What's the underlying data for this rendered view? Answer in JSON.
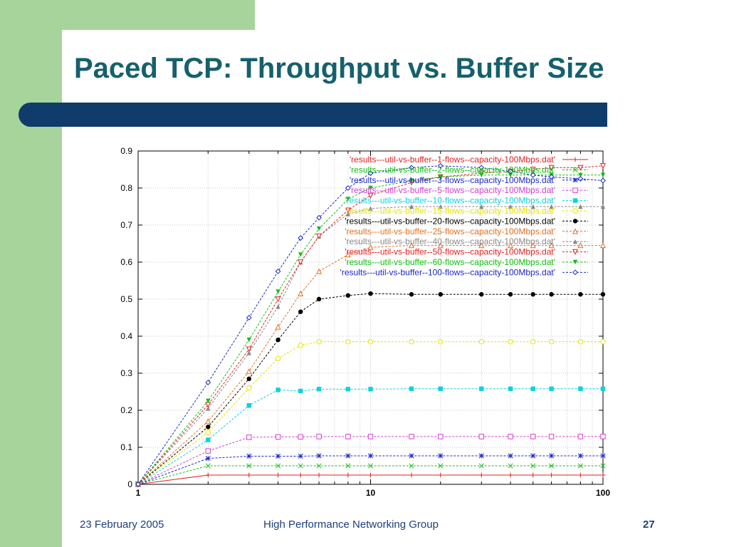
{
  "slide": {
    "title": "Paced TCP: Throughput vs. Buffer Size",
    "footer_date": "23 February 2005",
    "footer_group": "High Performance Networking Group",
    "page_number": "27"
  },
  "chart_data": {
    "type": "line",
    "title": "",
    "xlabel": "",
    "ylabel": "",
    "x_scale": "log",
    "xlim": [
      1,
      100
    ],
    "ylim": [
      0,
      0.9
    ],
    "x_ticks": [
      1,
      10,
      100
    ],
    "x_tick_labels": [
      "1",
      "10",
      "100"
    ],
    "y_ticks": [
      0,
      0.1,
      0.2,
      0.3,
      0.4,
      0.5,
      0.6,
      0.7,
      0.8,
      0.9
    ],
    "y_tick_labels": [
      "0",
      "0.1",
      "0.2",
      "0.3",
      "0.4",
      "0.5",
      "0.6",
      "0.7",
      "0.8",
      "0.9"
    ],
    "grid": true,
    "legend_position": "top-right",
    "x": [
      1,
      2,
      3,
      4,
      5,
      6,
      8,
      10,
      15,
      20,
      30,
      40,
      50,
      60,
      80,
      100
    ],
    "series": [
      {
        "name": "'results---util-vs-buffer--1-flows--capacity-100Mbps.dat'",
        "color": "#e02020",
        "marker": "plus",
        "values": [
          0,
          0.025,
          0.025,
          0.025,
          0.025,
          0.025,
          0.025,
          0.025,
          0.025,
          0.025,
          0.025,
          0.025,
          0.025,
          0.025,
          0.025,
          0.025
        ]
      },
      {
        "name": "'results---util-vs-buffer--2-flows--capacity-100Mbps.dat'",
        "color": "#10c010",
        "marker": "x",
        "values": [
          0,
          0.05,
          0.05,
          0.05,
          0.05,
          0.05,
          0.05,
          0.05,
          0.05,
          0.05,
          0.05,
          0.05,
          0.05,
          0.05,
          0.05,
          0.05
        ]
      },
      {
        "name": "'results---util-vs-buffer--3-flows--capacity-100Mbps.dat'",
        "color": "#1a28c8",
        "marker": "star",
        "values": [
          0,
          0.07,
          0.076,
          0.076,
          0.076,
          0.077,
          0.077,
          0.077,
          0.077,
          0.077,
          0.077,
          0.077,
          0.077,
          0.077,
          0.077,
          0.077
        ]
      },
      {
        "name": "'results---util-vs-buffer--5-flows--capacity-100Mbps.dat'",
        "color": "#d040d0",
        "marker": "square",
        "values": [
          0,
          0.09,
          0.127,
          0.128,
          0.128,
          0.129,
          0.129,
          0.129,
          0.129,
          0.129,
          0.129,
          0.129,
          0.129,
          0.129,
          0.129,
          0.129
        ]
      },
      {
        "name": "'results---util-vs-buffer--10-flows--capacity-100Mbps.dat'",
        "color": "#10d0e0",
        "marker": "filled-square",
        "values": [
          0,
          0.12,
          0.213,
          0.255,
          0.252,
          0.257,
          0.257,
          0.257,
          0.258,
          0.258,
          0.258,
          0.258,
          0.258,
          0.258,
          0.258,
          0.258
        ]
      },
      {
        "name": "'results---util-vs-buffer--15-flows--capacity-100Mbps.dat'",
        "color": "#e8e000",
        "marker": "circle",
        "values": [
          0,
          0.14,
          0.26,
          0.34,
          0.375,
          0.385,
          0.385,
          0.385,
          0.385,
          0.385,
          0.385,
          0.385,
          0.385,
          0.385,
          0.385,
          0.385
        ]
      },
      {
        "name": "'results---util-vs-buffer--20-flows--capacity-100Mbps.dat'",
        "color": "#000000",
        "marker": "filled-circle",
        "values": [
          0,
          0.155,
          0.285,
          0.39,
          0.466,
          0.5,
          0.51,
          0.515,
          0.513,
          0.513,
          0.513,
          0.513,
          0.513,
          0.513,
          0.513,
          0.513
        ]
      },
      {
        "name": "'results---util-vs-buffer--25-flows--capacity-100Mbps.dat'",
        "color": "#e07020",
        "marker": "triangle",
        "values": [
          0,
          0.17,
          0.305,
          0.425,
          0.515,
          0.575,
          0.62,
          0.64,
          0.645,
          0.645,
          0.645,
          0.645,
          0.645,
          0.645,
          0.645,
          0.645
        ]
      },
      {
        "name": "'results---util-vs-buffer--40-flows--capacity-100Mbps.dat'",
        "color": "#888888",
        "marker": "filled-triangle",
        "values": [
          0,
          0.205,
          0.355,
          0.48,
          0.6,
          0.67,
          0.73,
          0.745,
          0.75,
          0.75,
          0.75,
          0.75,
          0.75,
          0.75,
          0.75,
          0.75
        ]
      },
      {
        "name": "'results---util-vs-buffer--50-flows--capacity-100Mbps.dat'",
        "color": "#e02020",
        "marker": "triangle-down",
        "values": [
          0,
          0.215,
          0.365,
          0.5,
          0.6,
          0.67,
          0.74,
          0.78,
          0.815,
          0.83,
          0.84,
          0.845,
          0.85,
          0.855,
          0.855,
          0.86
        ]
      },
      {
        "name": "'results---util-vs-buffer--60-flows--capacity-100Mbps.dat'",
        "color": "#10c010",
        "marker": "filled-triangle-down",
        "values": [
          0,
          0.225,
          0.39,
          0.52,
          0.62,
          0.69,
          0.77,
          0.8,
          0.82,
          0.83,
          0.835,
          0.835,
          0.835,
          0.835,
          0.835,
          0.835
        ]
      },
      {
        "name": "'results---util-vs-buffer--100-flows--capacity-100Mbps.dat'",
        "color": "#1a28c8",
        "marker": "diamond",
        "values": [
          0,
          0.275,
          0.45,
          0.575,
          0.665,
          0.72,
          0.8,
          0.84,
          0.855,
          0.86,
          0.855,
          0.845,
          0.835,
          0.83,
          0.825,
          0.82
        ]
      }
    ]
  }
}
